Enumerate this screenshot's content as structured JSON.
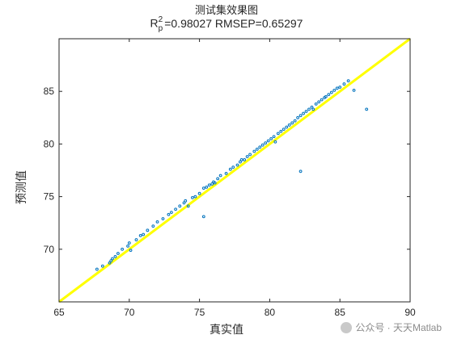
{
  "chart_data": {
    "type": "scatter",
    "title": "测试集效果图",
    "subtitle": {
      "r2_prefix": "R",
      "r2_sup": "2",
      "r2_sub": "p",
      "r2_text": "=0.98027  RMSEP=0.65297"
    },
    "xlabel": "真实值",
    "ylabel": "预测值",
    "xlim": [
      65,
      90
    ],
    "ylim": [
      65,
      90
    ],
    "xticks": [
      "65",
      "70",
      "75",
      "80",
      "85",
      "90"
    ],
    "yticks": [
      "70",
      "75",
      "80",
      "85"
    ],
    "grid": false,
    "colors": {
      "points": "#0072BD",
      "fit_line": "#FFFF00",
      "axes": "#262626"
    },
    "fit_line": {
      "x": [
        65,
        90
      ],
      "y": [
        65,
        90
      ]
    },
    "points": {
      "x": [
        67.7,
        68.1,
        68.6,
        68.7,
        68.8,
        69.0,
        69.2,
        69.5,
        69.9,
        70.0,
        70.1,
        70.5,
        70.8,
        71.0,
        71.3,
        71.7,
        72.0,
        72.4,
        72.8,
        73.0,
        73.3,
        73.6,
        73.9,
        74.0,
        74.2,
        74.5,
        74.7,
        75.0,
        75.3,
        75.5,
        75.7,
        75.9,
        76.0,
        76.1,
        76.3,
        76.5,
        76.9,
        77.2,
        77.4,
        77.7,
        77.9,
        78.0,
        78.2,
        78.4,
        78.6,
        78.9,
        79.1,
        79.3,
        79.5,
        79.7,
        79.9,
        80.1,
        80.3,
        80.4,
        80.6,
        80.8,
        81.0,
        81.2,
        81.4,
        81.6,
        81.8,
        82.0,
        82.2,
        82.4,
        82.6,
        82.8,
        83.0,
        83.1,
        83.3,
        83.5,
        83.7,
        83.9,
        84.0,
        84.2,
        84.4,
        84.6,
        84.8,
        85.0,
        85.3,
        85.6,
        86.0,
        86.9,
        82.2,
        75.3
      ],
      "y": [
        68.1,
        68.4,
        68.7,
        68.9,
        69.1,
        69.3,
        69.6,
        70.0,
        70.3,
        70.6,
        69.9,
        70.9,
        71.3,
        71.4,
        71.8,
        72.2,
        72.6,
        72.9,
        73.3,
        73.5,
        73.8,
        74.1,
        74.4,
        74.6,
        74.1,
        74.9,
        75.0,
        75.3,
        75.8,
        75.9,
        76.1,
        76.2,
        76.4,
        76.3,
        76.7,
        77.0,
        77.2,
        77.6,
        77.8,
        78.0,
        78.3,
        78.5,
        78.5,
        78.8,
        79.0,
        79.3,
        79.5,
        79.7,
        79.9,
        80.1,
        80.3,
        80.5,
        80.7,
        80.2,
        81.0,
        81.2,
        81.4,
        81.6,
        81.8,
        82.0,
        82.2,
        82.5,
        82.7,
        82.9,
        83.1,
        83.3,
        83.5,
        83.3,
        83.8,
        84.0,
        84.2,
        84.4,
        84.5,
        84.7,
        84.9,
        85.1,
        85.3,
        85.4,
        85.7,
        86.0,
        85.1,
        83.3,
        77.4,
        73.1
      ]
    }
  },
  "watermark": {
    "text": "公众号 · 天天Matlab",
    "icon": "wechat-icon"
  }
}
